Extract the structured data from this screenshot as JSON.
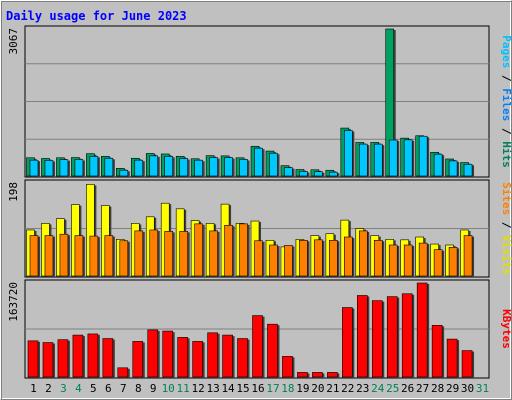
{
  "chart_data": {
    "type": "bar",
    "title": "Daily usage for June 2023",
    "categories": [
      "1",
      "2",
      "3",
      "4",
      "5",
      "6",
      "7",
      "8",
      "9",
      "10",
      "11",
      "12",
      "13",
      "14",
      "15",
      "16",
      "17",
      "18",
      "19",
      "20",
      "21",
      "22",
      "23",
      "24",
      "25",
      "26",
      "27",
      "28",
      "29",
      "30",
      "31"
    ],
    "weekend_days": [
      "3",
      "4",
      "10",
      "11",
      "17",
      "18",
      "24",
      "25",
      "31"
    ],
    "panels": [
      {
        "id": "hits-files",
        "max_label": "3067",
        "ymax": 3067,
        "series": [
          {
            "name": "Hits",
            "color": "#008040",
            "values": [
              380,
              365,
              380,
              385,
              465,
              410,
              160,
              370,
              470,
              460,
              410,
              360,
              425,
              420,
              380,
              620,
              520,
              215,
              135,
              130,
              120,
              1000,
              700,
              700,
              3067,
              790,
              840,
              495,
              355,
              280,
              0
            ]
          },
          {
            "name": "Files",
            "color": "#00c8ff",
            "values": [
              330,
              325,
              340,
              345,
              410,
              370,
              120,
              330,
              420,
              410,
              365,
              330,
              385,
              385,
              345,
              580,
              475,
              175,
              95,
              90,
              80,
              950,
              665,
              665,
              750,
              755,
              830,
              455,
              315,
              245,
              0
            ]
          },
          {
            "name": "Pages",
            "color": "#00c0ff",
            "values": []
          }
        ]
      },
      {
        "id": "visits-sites",
        "max_label": "198",
        "ymax": 198,
        "series": [
          {
            "name": "Visits",
            "color": "#ffff00",
            "values": [
              98,
              112,
              122,
              152,
              195,
              150,
              78,
              112,
              126,
              155,
              143,
              118,
              112,
              153,
              112,
              117,
              76,
              62,
              78,
              86,
              90,
              119,
              101,
              86,
              78,
              77,
              83,
              68,
              66,
              98,
              0
            ]
          },
          {
            "name": "Sites",
            "color": "#ff8000",
            "values": [
              86,
              86,
              89,
              86,
              85,
              86,
              75,
              96,
              98,
              95,
              95,
              111,
              96,
              108,
              111,
              75,
              66,
              65,
              76,
              77,
              76,
              83,
              96,
              76,
              66,
              66,
              70,
              56,
              61,
              86,
              0
            ]
          }
        ]
      },
      {
        "id": "kbytes",
        "max_label": "163720",
        "ymax": 163720,
        "series": [
          {
            "name": "KBytes",
            "color": "#ff0000",
            "values": [
              63000,
              60000,
              65000,
              73000,
              75000,
              67000,
              16000,
              62000,
              82000,
              80000,
              69000,
              62000,
              77000,
              73000,
              67000,
              107000,
              92000,
              36000,
              8000,
              8000,
              8000,
              121000,
              142000,
              133000,
              140000,
              145000,
              163720,
              90000,
              66000,
              46000,
              0
            ]
          }
        ]
      }
    ]
  },
  "colors": {
    "background": "#c0c0c0",
    "plot_background": "#c0c0c0",
    "title": "#0000ff",
    "weekday_label": "#000000",
    "weekend_label": "#00805c",
    "separator": "#000000",
    "grid": "#808080"
  }
}
